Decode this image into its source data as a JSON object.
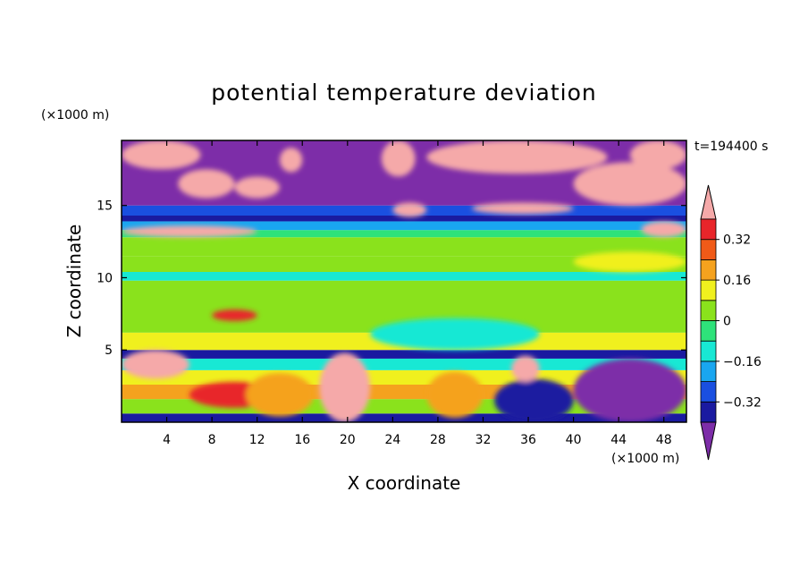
{
  "chart_data": {
    "type": "heatmap",
    "title": "potential temperature deviation",
    "xlabel": "X coordinate",
    "ylabel": "Z coordinate",
    "x_unit": "(×1000 m)",
    "y_unit": "(×1000 m)",
    "time_label": "t=194400 s",
    "xlim": [
      0,
      50
    ],
    "ylim": [
      0,
      19.5
    ],
    "x_ticks": [
      {
        "value": 4,
        "label": "4"
      },
      {
        "value": 8,
        "label": "8"
      },
      {
        "value": 12,
        "label": "12"
      },
      {
        "value": 16,
        "label": "16"
      },
      {
        "value": 20,
        "label": "20"
      },
      {
        "value": 24,
        "label": "24"
      },
      {
        "value": 28,
        "label": "28"
      },
      {
        "value": 32,
        "label": "32"
      },
      {
        "value": 36,
        "label": "36"
      },
      {
        "value": 40,
        "label": "40"
      },
      {
        "value": 44,
        "label": "44"
      },
      {
        "value": 48,
        "label": "48"
      }
    ],
    "y_ticks": [
      {
        "value": 5,
        "label": "5"
      },
      {
        "value": 10,
        "label": "10"
      },
      {
        "value": 15,
        "label": "15"
      }
    ],
    "colorbar": {
      "levels": [
        -0.4,
        -0.32,
        -0.24,
        -0.16,
        -0.08,
        0,
        0.08,
        0.16,
        0.24,
        0.32,
        0.4
      ],
      "labels": [
        {
          "value": 0.32,
          "label": "0.32"
        },
        {
          "value": 0.16,
          "label": "0.16"
        },
        {
          "value": 0,
          "label": "0"
        },
        {
          "value": -0.16,
          "label": "−0.16"
        },
        {
          "value": -0.32,
          "label": "−0.32"
        }
      ],
      "colors": [
        "#7d2da8",
        "#1a1aa0",
        "#1a4fe0",
        "#19a6f0",
        "#18e8d4",
        "#2ee27a",
        "#8ae21c",
        "#f0f01e",
        "#f5a21e",
        "#f05a18",
        "#e8252a",
        "#f5a9a9"
      ]
    },
    "bands": [
      {
        "z": [
          0,
          0.6
        ],
        "value": -0.36
      },
      {
        "z": [
          0.6,
          1.6
        ],
        "value": 0.04
      },
      {
        "z": [
          1.6,
          2.6
        ],
        "value": 0.2
      },
      {
        "z": [
          2.6,
          3.6
        ],
        "value": 0.1
      },
      {
        "z": [
          3.6,
          4.4
        ],
        "value": -0.1
      },
      {
        "z": [
          4.4,
          5.0
        ],
        "value": -0.36
      },
      {
        "z": [
          5.0,
          6.2
        ],
        "value": 0.12
      },
      {
        "z": [
          6.2,
          7.8
        ],
        "value": 0.05
      },
      {
        "z": [
          7.8,
          9.8
        ],
        "value": 0.03
      },
      {
        "z": [
          9.8,
          10.4
        ],
        "value": -0.12
      },
      {
        "z": [
          10.4,
          11.5
        ],
        "value": 0.05
      },
      {
        "z": [
          11.5,
          12.8
        ],
        "value": 0.07
      },
      {
        "z": [
          12.8,
          13.3
        ],
        "value": -0.06
      },
      {
        "z": [
          13.3,
          13.9
        ],
        "value": -0.2
      },
      {
        "z": [
          13.9,
          14.3
        ],
        "value": -0.36
      },
      {
        "z": [
          14.3,
          15.0
        ],
        "value": -0.26
      },
      {
        "z": [
          15.0,
          19.5
        ],
        "value": -0.45
      }
    ],
    "features": [
      {
        "x": [
          6,
          14
        ],
        "z": [
          1.0,
          2.8
        ],
        "value": 0.33
      },
      {
        "x": [
          11,
          17
        ],
        "z": [
          0.4,
          3.4
        ],
        "value": 0.2
      },
      {
        "x": [
          17.5,
          22
        ],
        "z": [
          0,
          4.8
        ],
        "value": 0.45
      },
      {
        "x": [
          27,
          32
        ],
        "z": [
          0.3,
          3.5
        ],
        "value": 0.22
      },
      {
        "x": [
          33,
          40
        ],
        "z": [
          0,
          3.0
        ],
        "value": -0.36
      },
      {
        "x": [
          34.5,
          37
        ],
        "z": [
          2.8,
          4.6
        ],
        "value": 0.45
      },
      {
        "x": [
          40,
          50
        ],
        "z": [
          0,
          4.4
        ],
        "value": -0.42
      },
      {
        "x": [
          22,
          37
        ],
        "z": [
          5.0,
          7.2
        ],
        "value": -0.1
      },
      {
        "x": [
          0,
          6
        ],
        "z": [
          3.0,
          5.0
        ],
        "value": 0.45
      },
      {
        "x": [
          8,
          12
        ],
        "z": [
          7.0,
          7.8
        ],
        "value": 0.33
      },
      {
        "x": [
          40,
          50
        ],
        "z": [
          10.4,
          11.8
        ],
        "value": 0.1
      },
      {
        "x": [
          0,
          12
        ],
        "z": [
          12.8,
          13.6
        ],
        "value": 0.45
      },
      {
        "x": [
          46,
          50
        ],
        "z": [
          12.8,
          13.9
        ],
        "value": 0.45
      },
      {
        "x": [
          0,
          7
        ],
        "z": [
          17.5,
          19.5
        ],
        "value": 0.45
      },
      {
        "x": [
          5,
          10
        ],
        "z": [
          15.5,
          17.5
        ],
        "value": 0.45
      },
      {
        "x": [
          10,
          14
        ],
        "z": [
          15.5,
          17.0
        ],
        "value": 0.45
      },
      {
        "x": [
          14,
          16
        ],
        "z": [
          17.3,
          19.0
        ],
        "value": 0.45
      },
      {
        "x": [
          23,
          26
        ],
        "z": [
          17.0,
          19.5
        ],
        "value": 0.45
      },
      {
        "x": [
          27,
          43
        ],
        "z": [
          17.2,
          19.5
        ],
        "value": 0.45
      },
      {
        "x": [
          40,
          50
        ],
        "z": [
          15.0,
          18.0
        ],
        "value": 0.45
      },
      {
        "x": [
          31,
          40
        ],
        "z": [
          14.4,
          15.2
        ],
        "value": 0.45
      },
      {
        "x": [
          24,
          27
        ],
        "z": [
          14.2,
          15.2
        ],
        "value": 0.45
      },
      {
        "x": [
          45,
          50
        ],
        "z": [
          17.5,
          19.5
        ],
        "value": 0.45
      }
    ]
  }
}
